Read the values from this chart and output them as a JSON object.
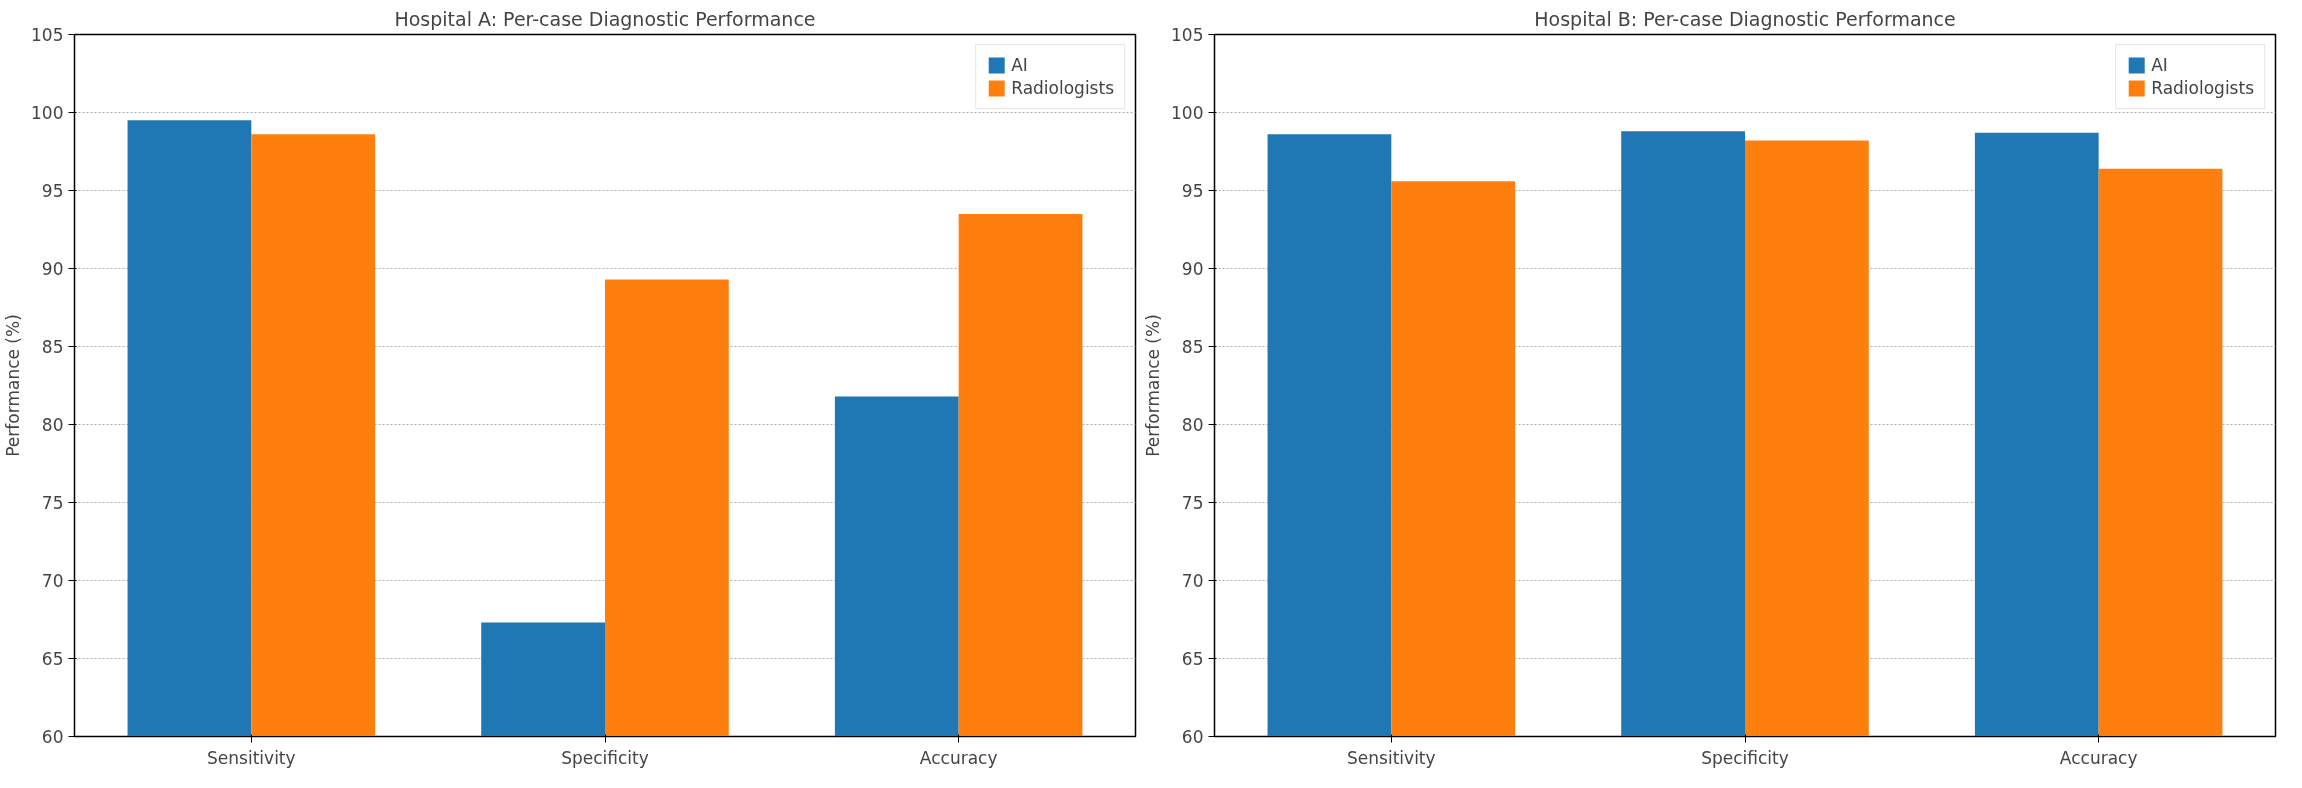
{
  "chart_data": [
    {
      "type": "bar",
      "title": "Hospital A: Per-case Diagnostic Performance",
      "ylabel": "Performance (%)",
      "categories": [
        "Sensitivity",
        "Specificity",
        "Accuracy"
      ],
      "series": [
        {
          "name": "AI",
          "color": "#1f77b4",
          "values": [
            99.5,
            67.3,
            81.8
          ]
        },
        {
          "name": "Radiologists",
          "color": "#ff7f0e",
          "values": [
            98.6,
            89.3,
            93.5
          ]
        }
      ],
      "ylim": [
        60,
        105
      ],
      "yticks": [
        60,
        65,
        70,
        75,
        80,
        85,
        90,
        95,
        100,
        105
      ],
      "grid": "y",
      "legend": "top right"
    },
    {
      "type": "bar",
      "title": "Hospital B: Per-case Diagnostic Performance",
      "ylabel": "Performance (%)",
      "categories": [
        "Sensitivity",
        "Specificity",
        "Accuracy"
      ],
      "series": [
        {
          "name": "AI",
          "color": "#1f77b4",
          "values": [
            98.6,
            98.8,
            98.7
          ]
        },
        {
          "name": "Radiologists",
          "color": "#ff7f0e",
          "values": [
            95.6,
            98.2,
            96.4
          ]
        }
      ],
      "ylim": [
        60,
        105
      ],
      "yticks": [
        60,
        65,
        70,
        75,
        80,
        85,
        90,
        95,
        100,
        105
      ],
      "grid": "y",
      "legend": "top right"
    }
  ]
}
